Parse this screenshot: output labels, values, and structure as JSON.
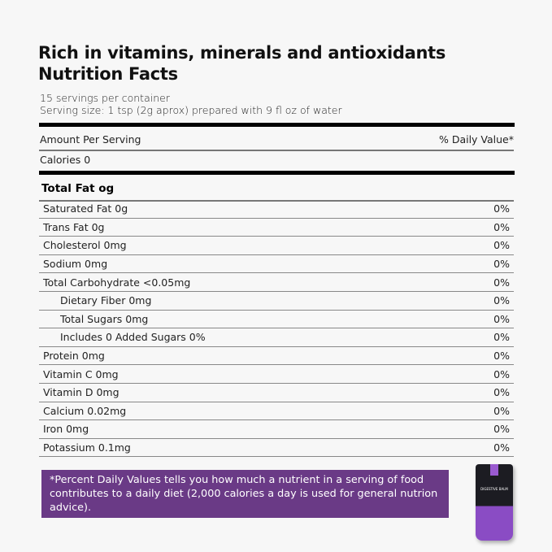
{
  "header": {
    "title_line1": "Rich in vitamins, minerals and antioxidants",
    "title_line2": "Nutrition Facts"
  },
  "servings": {
    "per_container": "15 servings per container",
    "serving_size": "Serving size: 1 tsp (2g aprox) prepared with 9 fl oz of water"
  },
  "table": {
    "amount_label": "Amount Per Serving",
    "dv_label": "% Daily Value*",
    "calories": "Calories  0",
    "total_fat": "Total Fat  og",
    "rows": [
      {
        "name": "Saturated Fat  0g",
        "dv": "0%",
        "indent": false
      },
      {
        "name": "Trans Fat 0g",
        "dv": "0%",
        "indent": false
      },
      {
        "name": "Cholesterol 0mg",
        "dv": "0%",
        "indent": false
      },
      {
        "name": "Sodium 0mg",
        "dv": "0%",
        "indent": false
      },
      {
        "name": "Total Carbohydrate <0.05mg",
        "dv": "0%",
        "indent": false
      },
      {
        "name": "Dietary Fiber 0mg",
        "dv": "0%",
        "indent": true
      },
      {
        "name": "Total Sugars 0mg",
        "dv": "0%",
        "indent": true
      },
      {
        "name": "Includes 0 Added Sugars 0%",
        "dv": "0%",
        "indent": true
      },
      {
        "name": "Protein 0mg",
        "dv": "0%",
        "indent": false
      },
      {
        "name": "Vitamin C 0mg",
        "dv": "0%",
        "indent": false
      },
      {
        "name": "Vitamin D 0mg",
        "dv": "0%",
        "indent": false
      },
      {
        "name": "Calcium 0.02mg",
        "dv": "0%",
        "indent": false
      },
      {
        "name": "Iron 0mg",
        "dv": "0%",
        "indent": false
      },
      {
        "name": "Potassium 0.1mg",
        "dv": "0%",
        "indent": false
      }
    ]
  },
  "footnote": "*Percent Daily Values tells  you how much a nutrient in a serving of food contributes to a daily diet (2,000 calories a day is used for general nutrion advice).",
  "product": {
    "label": "DIGESTIVE BALM"
  },
  "colors": {
    "accent": "#6a3a86"
  }
}
